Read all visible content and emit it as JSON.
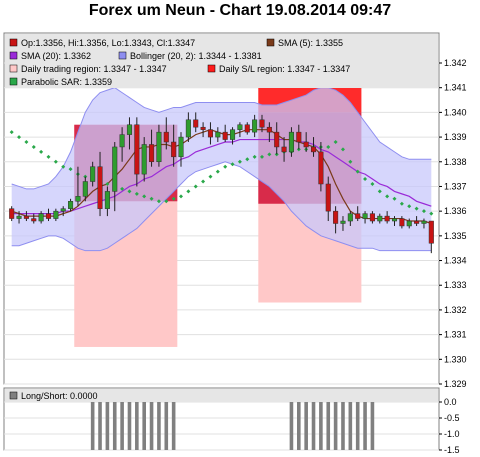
{
  "title": "Forex um Neun - Chart 19.08.2014 09:47",
  "colors": {
    "candle_up": "#2e9c2e",
    "candle_down": "#c81414",
    "sma5": "#7a3a1a",
    "sma20": "#9a2ad8",
    "bollinger_fill": "#c8c8fb",
    "bollinger_line": "#8e8ef0",
    "trading_region": "#ffc8c8",
    "sl_region": "#ff1a1a",
    "sl_region_dark": "#d41a3c",
    "sar": "#2aa84a",
    "long_short_bars": "#808080"
  },
  "legend": {
    "ohlc": "Op:1.3356, Hi:1.3356, Lo:1.3343, Cl:1.3347",
    "sma5": "SMA (5): 1.3355",
    "sma20": "SMA (20): 1.3362",
    "bollinger": "Bollinger (20, 2): 1.3344 - 1.3381",
    "trading_region": "Daily trading region: 1.3347 - 1.3347",
    "sl_region": "Daily S/L region: 1.3347 - 1.3347",
    "sar": "Parabolic SAR: 1.3359"
  },
  "sub_legend": {
    "long_short": "Long/Short: 0.0000"
  },
  "chart_data": [
    {
      "type": "candlestick",
      "y_ticks": [
        "1.342",
        "1.341",
        "1.340",
        "1.339",
        "1.338",
        "1.337",
        "1.336",
        "1.335",
        "1.334",
        "1.333",
        "1.332",
        "1.331",
        "1.330",
        "1.329"
      ],
      "ylim": [
        1.329,
        1.3425
      ],
      "candles": [
        {
          "o": 1.3361,
          "h": 1.3362,
          "l": 1.3356,
          "c": 1.3357
        },
        {
          "o": 1.3357,
          "h": 1.336,
          "l": 1.3355,
          "c": 1.3358
        },
        {
          "o": 1.3358,
          "h": 1.336,
          "l": 1.3356,
          "c": 1.3357
        },
        {
          "o": 1.3357,
          "h": 1.3359,
          "l": 1.3355,
          "c": 1.3356
        },
        {
          "o": 1.3356,
          "h": 1.336,
          "l": 1.3355,
          "c": 1.3359
        },
        {
          "o": 1.3359,
          "h": 1.3361,
          "l": 1.3356,
          "c": 1.3357
        },
        {
          "o": 1.3357,
          "h": 1.3361,
          "l": 1.3356,
          "c": 1.336
        },
        {
          "o": 1.336,
          "h": 1.3362,
          "l": 1.3358,
          "c": 1.3361
        },
        {
          "o": 1.3361,
          "h": 1.3365,
          "l": 1.336,
          "c": 1.3364
        },
        {
          "o": 1.3364,
          "h": 1.3378,
          "l": 1.3362,
          "c": 1.3366
        },
        {
          "o": 1.3366,
          "h": 1.3374,
          "l": 1.3364,
          "c": 1.3372
        },
        {
          "o": 1.3372,
          "h": 1.338,
          "l": 1.337,
          "c": 1.3378
        },
        {
          "o": 1.3378,
          "h": 1.3384,
          "l": 1.3358,
          "c": 1.3361
        },
        {
          "o": 1.3361,
          "h": 1.337,
          "l": 1.3358,
          "c": 1.3368
        },
        {
          "o": 1.3368,
          "h": 1.3388,
          "l": 1.336,
          "c": 1.3386
        },
        {
          "o": 1.3386,
          "h": 1.3394,
          "l": 1.338,
          "c": 1.3391
        },
        {
          "o": 1.3391,
          "h": 1.3398,
          "l": 1.3385,
          "c": 1.3395
        },
        {
          "o": 1.3395,
          "h": 1.3398,
          "l": 1.337,
          "c": 1.3375
        },
        {
          "o": 1.3375,
          "h": 1.339,
          "l": 1.3372,
          "c": 1.3387
        },
        {
          "o": 1.3387,
          "h": 1.3393,
          "l": 1.3378,
          "c": 1.338
        },
        {
          "o": 1.338,
          "h": 1.3395,
          "l": 1.3378,
          "c": 1.3392
        },
        {
          "o": 1.3392,
          "h": 1.3398,
          "l": 1.3385,
          "c": 1.3388
        },
        {
          "o": 1.3388,
          "h": 1.3395,
          "l": 1.3378,
          "c": 1.3382
        },
        {
          "o": 1.3382,
          "h": 1.3392,
          "l": 1.3378,
          "c": 1.339
        },
        {
          "o": 1.339,
          "h": 1.34,
          "l": 1.3388,
          "c": 1.3397
        },
        {
          "o": 1.3397,
          "h": 1.34,
          "l": 1.3392,
          "c": 1.3394
        },
        {
          "o": 1.3394,
          "h": 1.3396,
          "l": 1.339,
          "c": 1.3393
        },
        {
          "o": 1.3393,
          "h": 1.3396,
          "l": 1.3387,
          "c": 1.339
        },
        {
          "o": 1.339,
          "h": 1.3394,
          "l": 1.3388,
          "c": 1.3392
        },
        {
          "o": 1.3392,
          "h": 1.3395,
          "l": 1.3388,
          "c": 1.3389
        },
        {
          "o": 1.3389,
          "h": 1.3394,
          "l": 1.3387,
          "c": 1.3393
        },
        {
          "o": 1.3393,
          "h": 1.3396,
          "l": 1.339,
          "c": 1.3395
        },
        {
          "o": 1.3395,
          "h": 1.3396,
          "l": 1.3391,
          "c": 1.3392
        },
        {
          "o": 1.3392,
          "h": 1.3399,
          "l": 1.339,
          "c": 1.3397
        },
        {
          "o": 1.3397,
          "h": 1.3399,
          "l": 1.3392,
          "c": 1.3394
        },
        {
          "o": 1.3394,
          "h": 1.3396,
          "l": 1.3388,
          "c": 1.3392
        },
        {
          "o": 1.3392,
          "h": 1.3396,
          "l": 1.3383,
          "c": 1.3386
        },
        {
          "o": 1.3386,
          "h": 1.339,
          "l": 1.338,
          "c": 1.3384
        },
        {
          "o": 1.3384,
          "h": 1.3394,
          "l": 1.3382,
          "c": 1.3392
        },
        {
          "o": 1.3392,
          "h": 1.3395,
          "l": 1.3385,
          "c": 1.3388
        },
        {
          "o": 1.3388,
          "h": 1.3392,
          "l": 1.3384,
          "c": 1.3386
        },
        {
          "o": 1.3386,
          "h": 1.339,
          "l": 1.3382,
          "c": 1.3384
        },
        {
          "o": 1.3384,
          "h": 1.3388,
          "l": 1.3368,
          "c": 1.3371
        },
        {
          "o": 1.3371,
          "h": 1.3374,
          "l": 1.3356,
          "c": 1.336
        },
        {
          "o": 1.336,
          "h": 1.3362,
          "l": 1.3351,
          "c": 1.3355
        },
        {
          "o": 1.3355,
          "h": 1.3358,
          "l": 1.3352,
          "c": 1.3356
        },
        {
          "o": 1.3356,
          "h": 1.336,
          "l": 1.3354,
          "c": 1.3359
        },
        {
          "o": 1.3359,
          "h": 1.3362,
          "l": 1.3356,
          "c": 1.3357
        },
        {
          "o": 1.3357,
          "h": 1.336,
          "l": 1.3355,
          "c": 1.3359
        },
        {
          "o": 1.3359,
          "h": 1.336,
          "l": 1.3355,
          "c": 1.3356
        },
        {
          "o": 1.3356,
          "h": 1.3359,
          "l": 1.3355,
          "c": 1.3358
        },
        {
          "o": 1.3358,
          "h": 1.336,
          "l": 1.3355,
          "c": 1.3356
        },
        {
          "o": 1.3356,
          "h": 1.3358,
          "l": 1.3354,
          "c": 1.3357
        },
        {
          "o": 1.3357,
          "h": 1.3358,
          "l": 1.3353,
          "c": 1.3354
        },
        {
          "o": 1.3354,
          "h": 1.3357,
          "l": 1.3353,
          "c": 1.3356
        },
        {
          "o": 1.3356,
          "h": 1.3358,
          "l": 1.3354,
          "c": 1.3355
        },
        {
          "o": 1.3355,
          "h": 1.3357,
          "l": 1.3353,
          "c": 1.3356
        },
        {
          "o": 1.3356,
          "h": 1.3356,
          "l": 1.3343,
          "c": 1.3347
        }
      ],
      "sma5": [
        1.336,
        1.3359,
        1.3358,
        1.3358,
        1.3358,
        1.3358,
        1.3358,
        1.3359,
        1.336,
        1.3362,
        1.3365,
        1.3368,
        1.337,
        1.3371,
        1.3374,
        1.3377,
        1.3381,
        1.3385,
        1.3386,
        1.3386,
        1.3387,
        1.3387,
        1.3386,
        1.3387,
        1.3389,
        1.3391,
        1.3392,
        1.3393,
        1.3392,
        1.3391,
        1.3391,
        1.3392,
        1.3393,
        1.3393,
        1.3393,
        1.3393,
        1.3391,
        1.3389,
        1.3389,
        1.3388,
        1.3387,
        1.3386,
        1.3383,
        1.3378,
        1.3371,
        1.3365,
        1.336,
        1.3358,
        1.3357,
        1.3357,
        1.3357,
        1.3357,
        1.3357,
        1.3357,
        1.3356,
        1.3356,
        1.3356,
        1.3355
      ],
      "sma20": [
        1.3359,
        1.3359,
        1.3359,
        1.3359,
        1.3359,
        1.3359,
        1.3359,
        1.336,
        1.336,
        1.3361,
        1.3362,
        1.3363,
        1.3364,
        1.3365,
        1.3366,
        1.3368,
        1.337,
        1.3371,
        1.3373,
        1.3374,
        1.3376,
        1.3378,
        1.3379,
        1.3381,
        1.3382,
        1.3384,
        1.3385,
        1.3386,
        1.3387,
        1.3388,
        1.3388,
        1.3389,
        1.3389,
        1.3389,
        1.3389,
        1.3389,
        1.3389,
        1.3389,
        1.3389,
        1.3388,
        1.3388,
        1.3387,
        1.3385,
        1.3384,
        1.3382,
        1.338,
        1.3378,
        1.3376,
        1.3375,
        1.3373,
        1.3371,
        1.337,
        1.3368,
        1.3367,
        1.3366,
        1.3364,
        1.3363,
        1.3362
      ],
      "bollinger_upper": [
        1.3371,
        1.337,
        1.3369,
        1.3369,
        1.337,
        1.3371,
        1.3374,
        1.3378,
        1.3384,
        1.3392,
        1.34,
        1.3405,
        1.3408,
        1.3409,
        1.341,
        1.3408,
        1.3406,
        1.3404,
        1.3402,
        1.3401,
        1.34,
        1.3401,
        1.3402,
        1.3402,
        1.3403,
        1.3404,
        1.3404,
        1.3404,
        1.3404,
        1.3404,
        1.3404,
        1.3404,
        1.3404,
        1.3404,
        1.3403,
        1.3403,
        1.3403,
        1.3404,
        1.3405,
        1.3406,
        1.3407,
        1.3409,
        1.341,
        1.341,
        1.3409,
        1.3407,
        1.3404,
        1.34,
        1.3396,
        1.3392,
        1.3388,
        1.3386,
        1.3384,
        1.3382,
        1.3381,
        1.3381,
        1.3381,
        1.3381
      ],
      "bollinger_lower": [
        1.3346,
        1.3346,
        1.3347,
        1.3348,
        1.3349,
        1.335,
        1.335,
        1.3349,
        1.3347,
        1.3345,
        1.3344,
        1.3344,
        1.3344,
        1.3345,
        1.3347,
        1.3349,
        1.3351,
        1.3353,
        1.3356,
        1.3359,
        1.3362,
        1.3365,
        1.3368,
        1.3371,
        1.3374,
        1.3376,
        1.3377,
        1.3378,
        1.3379,
        1.338,
        1.3379,
        1.3378,
        1.3376,
        1.3374,
        1.3372,
        1.337,
        1.3367,
        1.3364,
        1.336,
        1.3357,
        1.3354,
        1.3352,
        1.335,
        1.3349,
        1.3348,
        1.3347,
        1.3346,
        1.3345,
        1.3345,
        1.3345,
        1.3344,
        1.3344,
        1.3344,
        1.3344,
        1.3344,
        1.3344,
        1.3344,
        1.3344
      ],
      "sar": [
        1.3392,
        1.339,
        1.3388,
        1.3386,
        1.3384,
        1.3382,
        1.338,
        1.3378,
        1.3377,
        1.3375,
        1.3374,
        1.3373,
        1.3372,
        1.3371,
        1.337,
        1.3369,
        1.3368,
        1.3367,
        1.3366,
        1.3365,
        1.3364,
        1.3364,
        1.3365,
        1.3366,
        1.3368,
        1.337,
        1.3372,
        1.3374,
        1.3376,
        1.3378,
        1.3379,
        1.338,
        1.3381,
        1.3382,
        1.3382,
        1.3383,
        1.3383,
        1.3384,
        1.3384,
        1.3385,
        1.3385,
        1.3386,
        1.3386,
        1.3386,
        1.3388,
        1.3385,
        1.338,
        1.3376,
        1.3373,
        1.3371,
        1.3368,
        1.3366,
        1.3365,
        1.3363,
        1.3362,
        1.3361,
        1.336,
        1.3359
      ],
      "trading_regions": [
        {
          "from": 9,
          "to": 22,
          "low": 1.3305,
          "high": 1.3395
        },
        {
          "from": 34,
          "to": 47,
          "low": 1.3323,
          "high": 1.3415
        }
      ],
      "sl_regions": [
        {
          "from": 9,
          "to": 22,
          "low": 1.3364,
          "high": 1.3395
        },
        {
          "from": 34,
          "to": 47,
          "low": 1.3363,
          "high": 1.34
        },
        {
          "from": 34,
          "to": 47,
          "low": 1.34,
          "high": 1.3413
        }
      ]
    },
    {
      "type": "bar",
      "series": [
        {
          "values": [
            0,
            0,
            0,
            0,
            0,
            0,
            0,
            0,
            0,
            0,
            0,
            -1.5,
            -1.5,
            -1.5,
            -1.5,
            -1.5,
            -1.5,
            -1.5,
            -1.5,
            -1.5,
            -1.5,
            -1.5,
            -1.5,
            0,
            0,
            0,
            0,
            0,
            0,
            0,
            0,
            0,
            0,
            0,
            0,
            0,
            0,
            0,
            -1.5,
            -1.5,
            -1.5,
            -1.5,
            -1.5,
            -1.5,
            -1.5,
            -1.5,
            -1.5,
            -1.5,
            -1.5,
            -1.5,
            0,
            0,
            0,
            0,
            0,
            0,
            0,
            0
          ]
        }
      ],
      "y_ticks": [
        "0.0",
        "-0.5",
        "-1.0",
        "-1.5"
      ],
      "ylim": [
        -1.5,
        0.0
      ]
    }
  ]
}
